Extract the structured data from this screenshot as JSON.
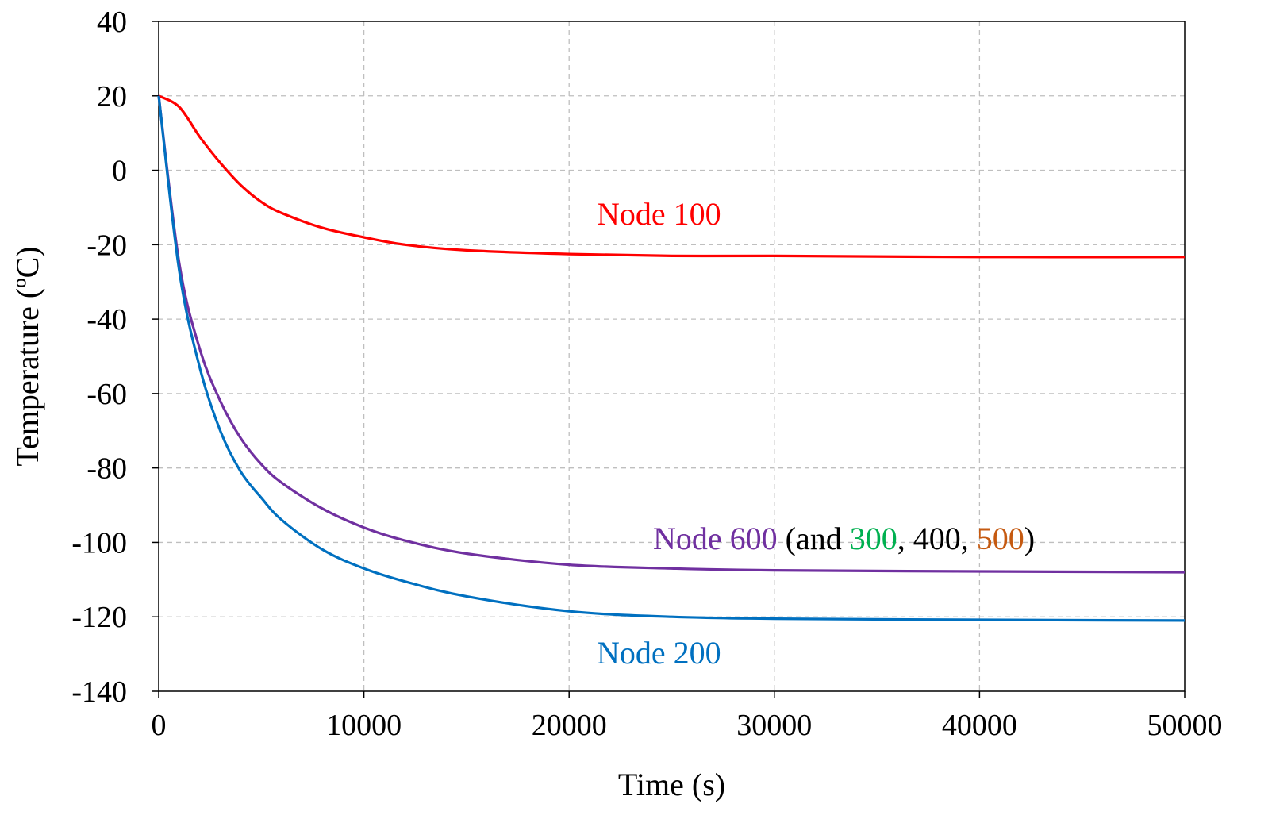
{
  "chart_data": {
    "type": "line",
    "xlabel": "Time (s)",
    "ylabel": "Temperature (ºC)",
    "xlim": [
      0,
      50000
    ],
    "ylim": [
      -140,
      40
    ],
    "xticks": [
      0,
      10000,
      20000,
      30000,
      40000,
      50000
    ],
    "yticks": [
      40,
      20,
      0,
      -20,
      -40,
      -60,
      -80,
      -100,
      -120,
      -140
    ],
    "grid": true,
    "legend": "none",
    "x": [
      0,
      1000,
      2000,
      3000,
      4000,
      5000,
      6000,
      8000,
      10000,
      12000,
      15000,
      20000,
      25000,
      30000,
      40000,
      50000
    ],
    "series": [
      {
        "name": "Node 100",
        "color": "#ff0000",
        "values": [
          20,
          17,
          9,
          2,
          -4,
          -8.5,
          -11.5,
          -15.5,
          -18,
          -20,
          -21.5,
          -22.5,
          -23,
          -23,
          -23.3,
          -23.3
        ]
      },
      {
        "name": "Node 600",
        "color": "#7030a0",
        "values": [
          20,
          -25,
          -48,
          -62,
          -72,
          -79,
          -84,
          -91,
          -96,
          -99.5,
          -103,
          -106,
          -107,
          -107.5,
          -107.8,
          -108
        ]
      },
      {
        "name": "Node 200",
        "color": "#0070c0",
        "values": [
          20,
          -27,
          -53,
          -70,
          -81,
          -88,
          -94,
          -102,
          -107,
          -110.5,
          -114.5,
          -118.5,
          -120,
          -120.5,
          -120.8,
          -121
        ]
      }
    ],
    "annotations": [
      {
        "id": "node100",
        "parts": [
          {
            "text": "Node 100",
            "color": "#ff0000"
          }
        ]
      },
      {
        "id": "node600",
        "parts": [
          {
            "text": "Node 600",
            "color": "#7030a0"
          },
          {
            "text": " (and ",
            "color": "#000000"
          },
          {
            "text": "300",
            "color": "#00b050"
          },
          {
            "text": ", 400, ",
            "color": "#000000"
          },
          {
            "text": "500",
            "color": "#c55a11"
          },
          {
            "text": ")",
            "color": "#000000"
          }
        ]
      },
      {
        "id": "node200",
        "parts": [
          {
            "text": "Node 200",
            "color": "#0070c0"
          }
        ]
      }
    ]
  }
}
